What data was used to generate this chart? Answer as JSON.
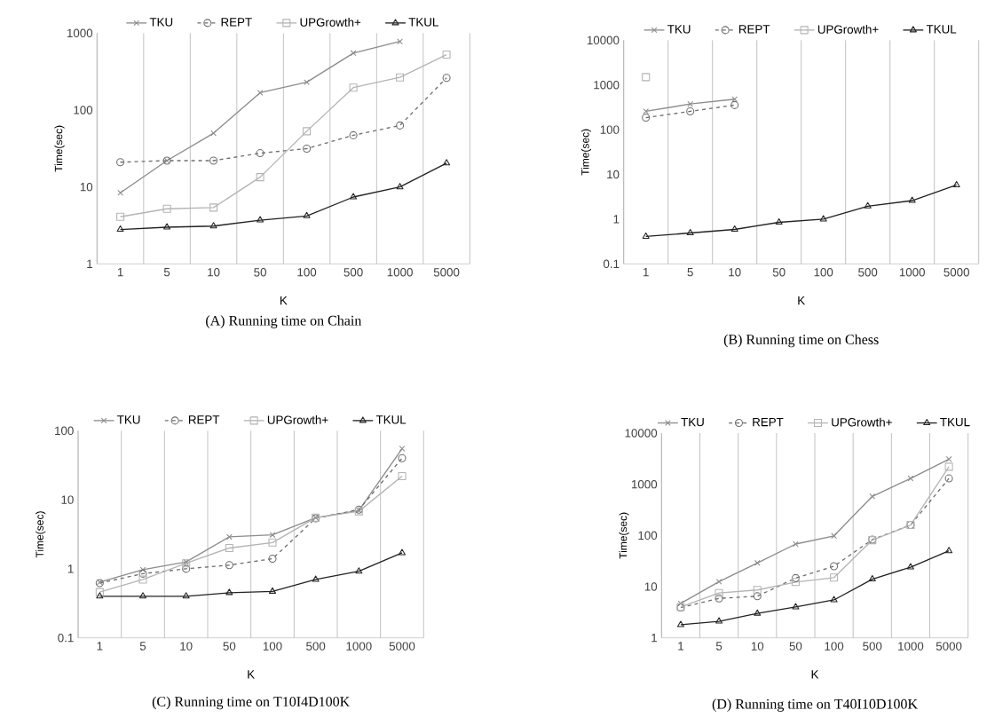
{
  "chart_data": [
    {
      "type": "line",
      "title": "(A) Running time on Chain",
      "xlabel": "K",
      "ylabel": "Time(sec)",
      "categories": [
        "1",
        "5",
        "10",
        "50",
        "100",
        "500",
        "1000",
        "5000"
      ],
      "log": true,
      "ylim": [
        1,
        1000
      ],
      "yticks": [
        1,
        10,
        100,
        1000
      ],
      "grid": "x",
      "legend": "top",
      "series": [
        {
          "name": "TKU",
          "color": "#8c8c8c",
          "marker": "cross",
          "line_style": "solid",
          "values": [
            8.4,
            22,
            50,
            168,
            230,
            550,
            780,
            null
          ]
        },
        {
          "name": "REPT",
          "color": "#6e6e6e",
          "marker": "circle",
          "line_style": "dashed",
          "values": [
            21,
            22,
            22,
            27.5,
            31.5,
            47,
            63,
            262
          ]
        },
        {
          "name": "UPGrowth+",
          "color": "#b4b4b4",
          "marker": "square",
          "line_style": "solid",
          "values": [
            4.1,
            5.2,
            5.4,
            13.4,
            53,
            196,
            266,
            525
          ]
        },
        {
          "name": "TKUL",
          "color": "#222222",
          "marker": "triangle",
          "line_style": "solid",
          "values": [
            2.8,
            3.0,
            3.1,
            3.7,
            4.2,
            7.4,
            10,
            20.4
          ]
        }
      ]
    },
    {
      "type": "line",
      "title": "(B) Running time on Chess",
      "xlabel": "K",
      "ylabel": "Time(sec)",
      "categories": [
        "1",
        "5",
        "10",
        "50",
        "100",
        "500",
        "1000",
        "5000"
      ],
      "log": true,
      "ylim": [
        0.1,
        10000
      ],
      "yticks": [
        0.1,
        1,
        10,
        100,
        1000,
        10000
      ],
      "grid": "x",
      "legend": "top",
      "series": [
        {
          "name": "TKU",
          "color": "#8c8c8c",
          "marker": "cross",
          "line_style": "solid",
          "values": [
            257,
            375,
            480,
            null,
            null,
            null,
            null,
            null
          ]
        },
        {
          "name": "REPT",
          "color": "#6e6e6e",
          "marker": "circle",
          "line_style": "dashed",
          "values": [
            186,
            257,
            355,
            null,
            null,
            null,
            null,
            null
          ]
        },
        {
          "name": "UPGrowth+",
          "color": "#b4b4b4",
          "marker": "square",
          "line_style": "solid",
          "values": [
            1500,
            null,
            null,
            null,
            null,
            null,
            null,
            null
          ]
        },
        {
          "name": "TKUL",
          "color": "#222222",
          "marker": "triangle",
          "line_style": "solid",
          "values": [
            0.41,
            0.49,
            0.59,
            0.85,
            1.0,
            1.95,
            2.6,
            5.8
          ]
        }
      ]
    },
    {
      "type": "line",
      "title": "(C) Running time on T10I4D100K",
      "xlabel": "K",
      "ylabel": "Time(sec)",
      "categories": [
        "1",
        "5",
        "10",
        "50",
        "100",
        "500",
        "1000",
        "5000"
      ],
      "log": true,
      "ylim": [
        0.1,
        100
      ],
      "yticks": [
        0.1,
        1,
        10,
        100
      ],
      "grid": "x",
      "legend": "top",
      "series": [
        {
          "name": "TKU",
          "color": "#8c8c8c",
          "marker": "cross",
          "line_style": "solid",
          "values": [
            0.64,
            0.97,
            1.26,
            2.9,
            3.1,
            5.5,
            7.0,
            55
          ]
        },
        {
          "name": "REPT",
          "color": "#6e6e6e",
          "marker": "circle",
          "line_style": "dashed",
          "values": [
            0.62,
            0.85,
            1.0,
            1.13,
            1.4,
            5.4,
            7.2,
            40
          ]
        },
        {
          "name": "UPGrowth+",
          "color": "#b4b4b4",
          "marker": "square",
          "line_style": "solid",
          "values": [
            0.46,
            0.7,
            1.2,
            2.0,
            2.4,
            5.5,
            6.8,
            22
          ]
        },
        {
          "name": "TKUL",
          "color": "#222222",
          "marker": "triangle",
          "line_style": "solid",
          "values": [
            0.4,
            0.4,
            0.4,
            0.45,
            0.47,
            0.7,
            0.92,
            1.7
          ]
        }
      ]
    },
    {
      "type": "line",
      "title": "(D) Running time on T40I10D100K",
      "xlabel": "K",
      "ylabel": "Time(sec)",
      "categories": [
        "1",
        "5",
        "10",
        "50",
        "100",
        "500",
        "1000",
        "5000"
      ],
      "log": true,
      "ylim": [
        1,
        10000
      ],
      "yticks": [
        1,
        10,
        100,
        1000,
        10000
      ],
      "grid": "x",
      "legend": "top",
      "series": [
        {
          "name": "TKU",
          "color": "#8c8c8c",
          "marker": "cross",
          "line_style": "solid",
          "values": [
            4.7,
            12.5,
            29,
            68,
            98,
            580,
            1300,
            3100
          ]
        },
        {
          "name": "REPT",
          "color": "#6e6e6e",
          "marker": "circle",
          "line_style": "dashed",
          "values": [
            3.9,
            5.9,
            6.5,
            14.7,
            25,
            83,
            160,
            1300
          ]
        },
        {
          "name": "UPGrowth+",
          "color": "#b4b4b4",
          "marker": "square",
          "line_style": "solid",
          "values": [
            4.0,
            7.5,
            8.6,
            12.3,
            15,
            81,
            160,
            2200
          ]
        },
        {
          "name": "TKUL",
          "color": "#222222",
          "marker": "triangle",
          "line_style": "solid",
          "values": [
            1.8,
            2.1,
            3.0,
            4.0,
            5.5,
            14,
            24,
            50
          ]
        }
      ]
    }
  ]
}
